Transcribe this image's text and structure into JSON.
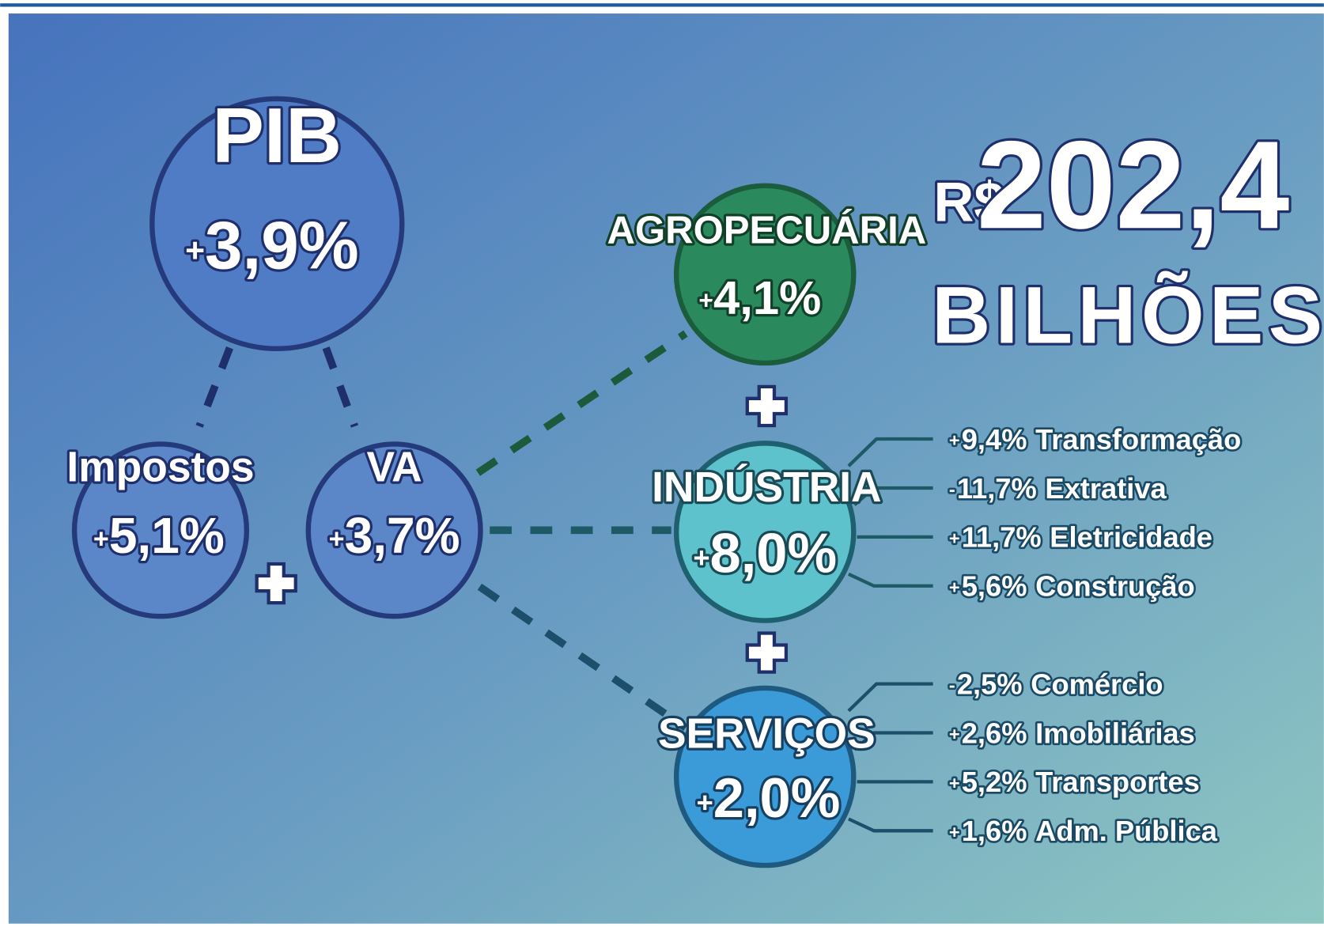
{
  "pib": {
    "label": "PIB",
    "sign": "+",
    "value": "3,9%"
  },
  "impostos": {
    "label": "Impostos",
    "sign": "+",
    "value": "5,1%"
  },
  "va": {
    "label": "VA",
    "sign": "+",
    "value": "3,7%"
  },
  "total": {
    "currency": "R$",
    "value": "202,4",
    "unit": "BILHÕES"
  },
  "sectors": [
    {
      "label": "AGROPECUÁRIA",
      "sign": "+",
      "value": "4,1%",
      "items": []
    },
    {
      "label": "INDÚSTRIA",
      "sign": "+",
      "value": "8,0%",
      "items": [
        {
          "sign": "+",
          "value": "9,4%",
          "name": "Transformação"
        },
        {
          "sign": "-",
          "value": "11,7%",
          "name": "Extrativa"
        },
        {
          "sign": "+",
          "value": "11,7%",
          "name": "Eletricidade"
        },
        {
          "sign": "+",
          "value": "5,6%",
          "name": "Construção"
        }
      ]
    },
    {
      "label": "SERVIÇOS",
      "sign": "+",
      "value": "2,0%",
      "items": [
        {
          "sign": "-",
          "value": "2,5%",
          "name": "Comércio"
        },
        {
          "sign": "+",
          "value": "2,6%",
          "name": "Imobiliárias"
        },
        {
          "sign": "+",
          "value": "5,2%",
          "name": "Transportes"
        },
        {
          "sign": "+",
          "value": "1,6%",
          "name": "Adm. Pública"
        }
      ]
    }
  ]
}
